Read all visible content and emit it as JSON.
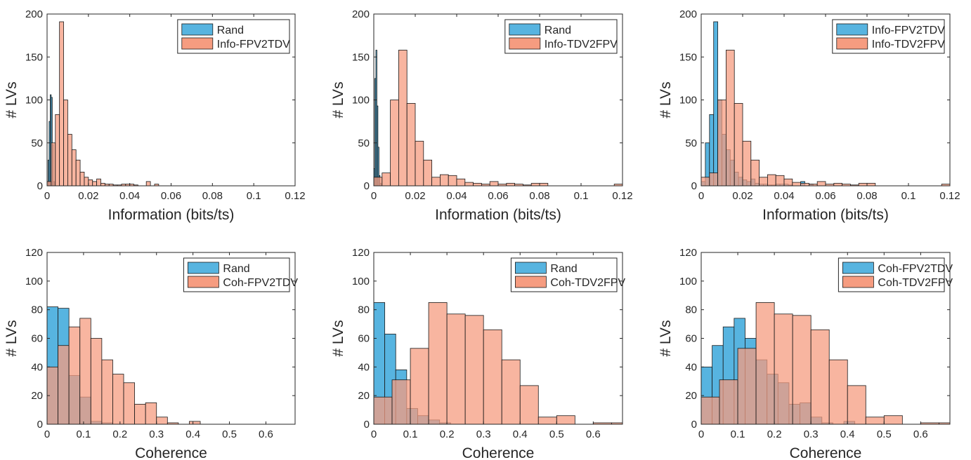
{
  "chart_data": [
    {
      "type": "histogram",
      "xlabel": "Information (bits/ts)",
      "ylabel": "# LVs",
      "xlim": [
        0,
        0.12
      ],
      "ylim": [
        0,
        200
      ],
      "xticks": [
        "0",
        "0.02",
        "0.04",
        "0.06",
        "0.08",
        "0.1",
        "0.12"
      ],
      "yticks": [
        "0",
        "50",
        "100",
        "150",
        "200"
      ],
      "legend_position": "top-right",
      "series": [
        {
          "name": "Rand",
          "color": "#1f9bd6",
          "bins": [
            [
              0.0,
              0.0005,
              5
            ],
            [
              0.0005,
              0.001,
              30
            ],
            [
              0.001,
              0.0015,
              75
            ],
            [
              0.0015,
              0.002,
              106
            ],
            [
              0.002,
              0.0025,
              103
            ],
            [
              0.0025,
              0.003,
              48
            ],
            [
              0.003,
              0.0035,
              5
            ]
          ]
        },
        {
          "name": "Info-FPV2TDV",
          "color": "#f37b56",
          "bins": [
            [
              0.0,
              0.002,
              5
            ],
            [
              0.002,
              0.004,
              50
            ],
            [
              0.004,
              0.006,
              83
            ],
            [
              0.006,
              0.008,
              191
            ],
            [
              0.008,
              0.01,
              100
            ],
            [
              0.01,
              0.012,
              60
            ],
            [
              0.012,
              0.014,
              42
            ],
            [
              0.014,
              0.016,
              30
            ],
            [
              0.016,
              0.018,
              16
            ],
            [
              0.018,
              0.02,
              10
            ],
            [
              0.02,
              0.022,
              7
            ],
            [
              0.022,
              0.024,
              5
            ],
            [
              0.024,
              0.026,
              8
            ],
            [
              0.026,
              0.028,
              3
            ],
            [
              0.028,
              0.03,
              2
            ],
            [
              0.03,
              0.032,
              2
            ],
            [
              0.032,
              0.034,
              1
            ],
            [
              0.034,
              0.036,
              1
            ],
            [
              0.036,
              0.038,
              2
            ],
            [
              0.038,
              0.04,
              2
            ],
            [
              0.04,
              0.042,
              2
            ],
            [
              0.042,
              0.044,
              1
            ],
            [
              0.048,
              0.05,
              5
            ],
            [
              0.052,
              0.054,
              2
            ]
          ]
        }
      ]
    },
    {
      "type": "histogram",
      "xlabel": "Information (bits/ts)",
      "ylabel": "# LVs",
      "xlim": [
        0,
        0.12
      ],
      "ylim": [
        0,
        200
      ],
      "xticks": [
        "0",
        "0.02",
        "0.04",
        "0.06",
        "0.08",
        "0.1",
        "0.12"
      ],
      "yticks": [
        "0",
        "50",
        "100",
        "150",
        "200"
      ],
      "legend_position": "top-right",
      "series": [
        {
          "name": "Rand",
          "color": "#1f9bd6",
          "bins": [
            [
              0.0,
              0.0005,
              20
            ],
            [
              0.0005,
              0.001,
              125
            ],
            [
              0.001,
              0.0015,
              158
            ],
            [
              0.0015,
              0.002,
              93
            ],
            [
              0.002,
              0.0025,
              45
            ],
            [
              0.0025,
              0.003,
              12
            ],
            [
              0.003,
              0.0035,
              3
            ]
          ]
        },
        {
          "name": "Info-TDV2FPV",
          "color": "#f37b56",
          "bins": [
            [
              0.0,
              0.004,
              10
            ],
            [
              0.004,
              0.008,
              15
            ],
            [
              0.008,
              0.012,
              100
            ],
            [
              0.012,
              0.016,
              158
            ],
            [
              0.016,
              0.02,
              96
            ],
            [
              0.02,
              0.024,
              52
            ],
            [
              0.024,
              0.028,
              30
            ],
            [
              0.028,
              0.032,
              10
            ],
            [
              0.032,
              0.036,
              13
            ],
            [
              0.036,
              0.04,
              12
            ],
            [
              0.04,
              0.044,
              8
            ],
            [
              0.044,
              0.048,
              4
            ],
            [
              0.048,
              0.052,
              3
            ],
            [
              0.052,
              0.056,
              2
            ],
            [
              0.056,
              0.06,
              5
            ],
            [
              0.06,
              0.064,
              2
            ],
            [
              0.064,
              0.068,
              3
            ],
            [
              0.068,
              0.072,
              2
            ],
            [
              0.072,
              0.076,
              1
            ],
            [
              0.076,
              0.08,
              3
            ],
            [
              0.08,
              0.084,
              3
            ],
            [
              0.116,
              0.12,
              2
            ]
          ]
        }
      ]
    },
    {
      "type": "histogram",
      "xlabel": "Information (bits/ts)",
      "ylabel": "# LVs",
      "xlim": [
        0,
        0.12
      ],
      "ylim": [
        0,
        200
      ],
      "xticks": [
        "0",
        "0.02",
        "0.04",
        "0.06",
        "0.08",
        "0.1",
        "0.12"
      ],
      "yticks": [
        "0",
        "50",
        "100",
        "150",
        "200"
      ],
      "legend_position": "top-right",
      "series": [
        {
          "name": "Info-FPV2TDV",
          "color": "#1f9bd6",
          "bins": [
            [
              0.0,
              0.002,
              5
            ],
            [
              0.002,
              0.004,
              50
            ],
            [
              0.004,
              0.006,
              83
            ],
            [
              0.006,
              0.008,
              191
            ],
            [
              0.008,
              0.01,
              100
            ],
            [
              0.01,
              0.012,
              60
            ],
            [
              0.012,
              0.014,
              42
            ],
            [
              0.014,
              0.016,
              30
            ],
            [
              0.016,
              0.018,
              16
            ],
            [
              0.018,
              0.02,
              10
            ],
            [
              0.02,
              0.022,
              7
            ],
            [
              0.022,
              0.024,
              5
            ],
            [
              0.024,
              0.026,
              8
            ],
            [
              0.026,
              0.028,
              3
            ],
            [
              0.028,
              0.03,
              2
            ],
            [
              0.03,
              0.032,
              2
            ],
            [
              0.032,
              0.034,
              1
            ],
            [
              0.034,
              0.036,
              1
            ],
            [
              0.036,
              0.038,
              2
            ],
            [
              0.038,
              0.04,
              2
            ],
            [
              0.04,
              0.042,
              2
            ],
            [
              0.042,
              0.044,
              1
            ],
            [
              0.048,
              0.05,
              5
            ],
            [
              0.052,
              0.054,
              2
            ]
          ]
        },
        {
          "name": "Info-TDV2FPV",
          "color": "#f37b56",
          "bins": [
            [
              0.0,
              0.004,
              10
            ],
            [
              0.004,
              0.008,
              15
            ],
            [
              0.008,
              0.012,
              100
            ],
            [
              0.012,
              0.016,
              158
            ],
            [
              0.016,
              0.02,
              96
            ],
            [
              0.02,
              0.024,
              52
            ],
            [
              0.024,
              0.028,
              30
            ],
            [
              0.028,
              0.032,
              10
            ],
            [
              0.032,
              0.036,
              13
            ],
            [
              0.036,
              0.04,
              12
            ],
            [
              0.04,
              0.044,
              8
            ],
            [
              0.044,
              0.048,
              4
            ],
            [
              0.048,
              0.052,
              3
            ],
            [
              0.052,
              0.056,
              2
            ],
            [
              0.056,
              0.06,
              5
            ],
            [
              0.06,
              0.064,
              2
            ],
            [
              0.064,
              0.068,
              3
            ],
            [
              0.068,
              0.072,
              2
            ],
            [
              0.072,
              0.076,
              1
            ],
            [
              0.076,
              0.08,
              3
            ],
            [
              0.08,
              0.084,
              3
            ],
            [
              0.116,
              0.12,
              2
            ]
          ]
        }
      ]
    },
    {
      "type": "histogram",
      "xlabel": "Coherence",
      "ylabel": "# LVs",
      "xlim": [
        0,
        0.68
      ],
      "ylim": [
        0,
        120
      ],
      "xticks": [
        "0",
        "0.1",
        "0.2",
        "0.3",
        "0.4",
        "0.5",
        "0.6"
      ],
      "yticks": [
        "0",
        "20",
        "40",
        "60",
        "80",
        "100",
        "120"
      ],
      "legend_position": "top-right",
      "series": [
        {
          "name": "Rand",
          "color": "#1f9bd6",
          "bins": [
            [
              0.0,
              0.03,
              82
            ],
            [
              0.03,
              0.06,
              81
            ],
            [
              0.06,
              0.09,
              34
            ],
            [
              0.09,
              0.12,
              19
            ],
            [
              0.12,
              0.15,
              2
            ],
            [
              0.15,
              0.18,
              1
            ]
          ]
        },
        {
          "name": "Coh-FPV2TDV",
          "color": "#f37b56",
          "bins": [
            [
              0.0,
              0.03,
              40
            ],
            [
              0.03,
              0.06,
              55
            ],
            [
              0.06,
              0.09,
              68
            ],
            [
              0.09,
              0.12,
              74
            ],
            [
              0.12,
              0.15,
              60
            ],
            [
              0.15,
              0.18,
              45
            ],
            [
              0.18,
              0.21,
              35
            ],
            [
              0.21,
              0.24,
              29
            ],
            [
              0.24,
              0.27,
              14
            ],
            [
              0.27,
              0.3,
              15
            ],
            [
              0.3,
              0.33,
              5
            ],
            [
              0.33,
              0.36,
              1
            ],
            [
              0.39,
              0.42,
              2
            ]
          ]
        }
      ]
    },
    {
      "type": "histogram",
      "xlabel": "Coherence",
      "ylabel": "# LVs",
      "xlim": [
        0,
        0.68
      ],
      "ylim": [
        0,
        120
      ],
      "xticks": [
        "0",
        "0.1",
        "0.2",
        "0.3",
        "0.4",
        "0.5",
        "0.6"
      ],
      "yticks": [
        "0",
        "20",
        "40",
        "60",
        "80",
        "100",
        "120"
      ],
      "legend_position": "top-right",
      "series": [
        {
          "name": "Rand",
          "color": "#1f9bd6",
          "bins": [
            [
              0.0,
              0.03,
              85
            ],
            [
              0.03,
              0.06,
              63
            ],
            [
              0.06,
              0.09,
              38
            ],
            [
              0.09,
              0.12,
              11
            ],
            [
              0.12,
              0.15,
              6
            ],
            [
              0.15,
              0.18,
              3
            ],
            [
              0.18,
              0.21,
              1
            ]
          ]
        },
        {
          "name": "Coh-TDV2FPV",
          "color": "#f37b56",
          "bins": [
            [
              0.0,
              0.05,
              19
            ],
            [
              0.05,
              0.1,
              31
            ],
            [
              0.1,
              0.15,
              53
            ],
            [
              0.15,
              0.2,
              85
            ],
            [
              0.2,
              0.25,
              77
            ],
            [
              0.25,
              0.3,
              76
            ],
            [
              0.3,
              0.35,
              66
            ],
            [
              0.35,
              0.4,
              45
            ],
            [
              0.4,
              0.45,
              27
            ],
            [
              0.45,
              0.5,
              5
            ],
            [
              0.5,
              0.55,
              6
            ],
            [
              0.6,
              0.65,
              1
            ],
            [
              0.65,
              0.7,
              1
            ]
          ]
        }
      ]
    },
    {
      "type": "histogram",
      "xlabel": "Coherence",
      "ylabel": "# LVs",
      "xlim": [
        0,
        0.68
      ],
      "ylim": [
        0,
        120
      ],
      "xticks": [
        "0",
        "0.1",
        "0.2",
        "0.3",
        "0.4",
        "0.5",
        "0.6"
      ],
      "yticks": [
        "0",
        "20",
        "40",
        "60",
        "80",
        "100",
        "120"
      ],
      "legend_position": "top-right",
      "series": [
        {
          "name": "Coh-FPV2TDV",
          "color": "#1f9bd6",
          "bins": [
            [
              0.0,
              0.03,
              40
            ],
            [
              0.03,
              0.06,
              55
            ],
            [
              0.06,
              0.09,
              68
            ],
            [
              0.09,
              0.12,
              74
            ],
            [
              0.12,
              0.15,
              60
            ],
            [
              0.15,
              0.18,
              45
            ],
            [
              0.18,
              0.21,
              35
            ],
            [
              0.21,
              0.24,
              29
            ],
            [
              0.24,
              0.27,
              14
            ],
            [
              0.27,
              0.3,
              15
            ],
            [
              0.3,
              0.33,
              5
            ],
            [
              0.33,
              0.36,
              1
            ],
            [
              0.39,
              0.42,
              2
            ]
          ]
        },
        {
          "name": "Coh-TDV2FPV",
          "color": "#f37b56",
          "bins": [
            [
              0.0,
              0.05,
              19
            ],
            [
              0.05,
              0.1,
              31
            ],
            [
              0.1,
              0.15,
              53
            ],
            [
              0.15,
              0.2,
              85
            ],
            [
              0.2,
              0.25,
              77
            ],
            [
              0.25,
              0.3,
              76
            ],
            [
              0.3,
              0.35,
              66
            ],
            [
              0.35,
              0.4,
              45
            ],
            [
              0.4,
              0.45,
              27
            ],
            [
              0.45,
              0.5,
              5
            ],
            [
              0.5,
              0.55,
              6
            ],
            [
              0.6,
              0.65,
              1
            ],
            [
              0.65,
              0.7,
              1
            ]
          ]
        }
      ]
    }
  ]
}
